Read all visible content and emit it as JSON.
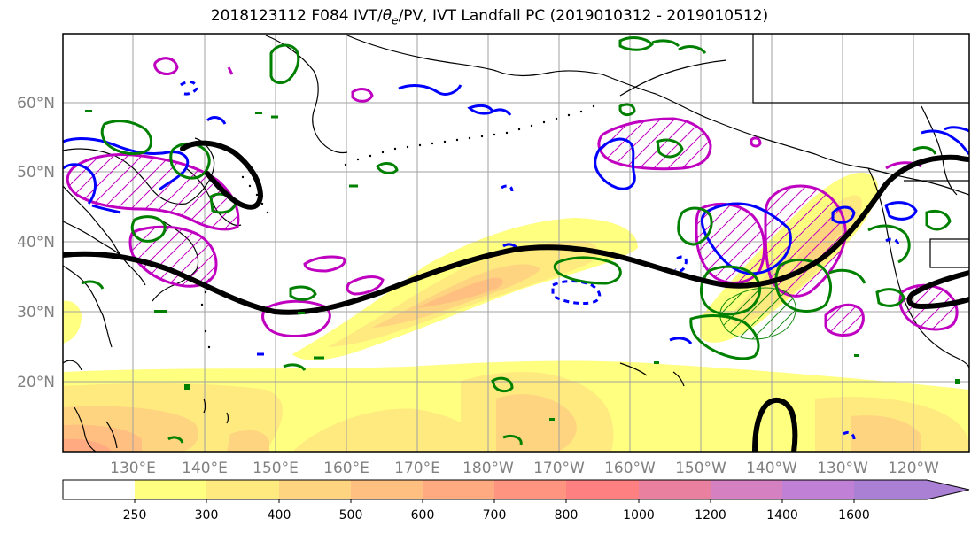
{
  "title_main": "2018123112 F084 IVT/",
  "title_theta": "θ",
  "title_sub": "e",
  "title_rest": "/PV, IVT Landfall PC (2019010312 - 2019010512)",
  "lat_labels": [
    "60°N",
    "50°N",
    "40°N",
    "30°N",
    "20°N"
  ],
  "lat_values": [
    60,
    50,
    40,
    30,
    20
  ],
  "lon_labels": [
    "130°E",
    "140°E",
    "150°E",
    "160°E",
    "170°E",
    "180°W",
    "170°W",
    "160°W",
    "150°W",
    "140°W",
    "130°W",
    "120°W"
  ],
  "lon_values": [
    130,
    140,
    150,
    160,
    170,
    180,
    190,
    200,
    210,
    220,
    230,
    240
  ],
  "colorbar": {
    "levels": [
      "250",
      "300",
      "400",
      "500",
      "600",
      "700",
      "800",
      "1000",
      "1200",
      "1400",
      "1600"
    ],
    "colors": [
      "#ffffff",
      "#ffff80",
      "#ffea80",
      "#ffd480",
      "#ffbf80",
      "#ffaa80",
      "#ff9580",
      "#ff8080",
      "#ea80a0",
      "#d580c0",
      "#bf80d5",
      "#aa80d5"
    ]
  },
  "legend_colors": {
    "ivt_shading": "#ffff80",
    "theta_e_contour": "#008000",
    "pv_contour": "#0000ff",
    "landfall_pc_contour": "#c000c0",
    "thick_contour": "#000000"
  }
}
